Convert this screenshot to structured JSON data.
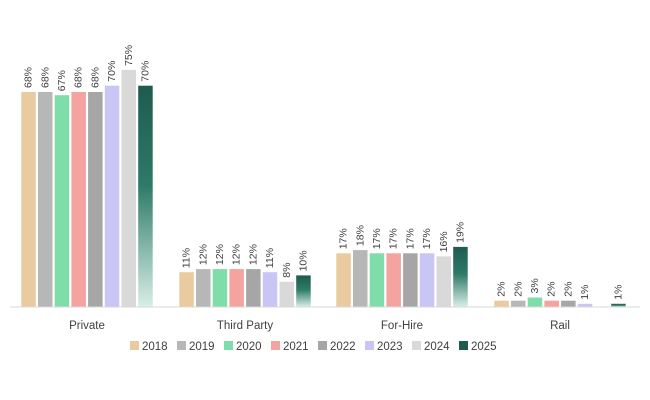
{
  "chart_data": {
    "type": "bar",
    "title": "",
    "xlabel": "",
    "ylabel": "",
    "ylim": [
      0,
      80
    ],
    "grid": false,
    "legend_position": "bottom",
    "categories": [
      "Private",
      "Third Party",
      "For-Hire",
      "Rail"
    ],
    "series": [
      {
        "name": "2018",
        "color": "#EACBA0",
        "values": [
          68,
          11,
          17,
          2
        ],
        "labels": [
          "68%",
          "11%",
          "17%",
          "2%"
        ]
      },
      {
        "name": "2019",
        "color": "#B7B7B7",
        "values": [
          68,
          12,
          18,
          2
        ],
        "labels": [
          "68%",
          "12%",
          "18%",
          "2%"
        ]
      },
      {
        "name": "2020",
        "color": "#7EDDA8",
        "values": [
          67,
          12,
          17,
          3
        ],
        "labels": [
          "67%",
          "12%",
          "17%",
          "3%"
        ]
      },
      {
        "name": "2021",
        "color": "#F4A3A0",
        "values": [
          68,
          12,
          17,
          2
        ],
        "labels": [
          "68%",
          "12%",
          "17%",
          "2%"
        ]
      },
      {
        "name": "2022",
        "color": "#A6A6A6",
        "values": [
          68,
          12,
          17,
          2
        ],
        "labels": [
          "68%",
          "12%",
          "17%",
          "2%"
        ]
      },
      {
        "name": "2023",
        "color": "#C9C5F4",
        "values": [
          70,
          11,
          17,
          1
        ],
        "labels": [
          "70%",
          "11%",
          "17%",
          "1%"
        ]
      },
      {
        "name": "2024",
        "color": "#D9D9D9",
        "values": [
          75,
          8,
          16,
          null
        ],
        "labels": [
          "75%",
          "8%",
          "16%",
          ""
        ]
      },
      {
        "name": "2025",
        "color": "#1E5B4E",
        "gradient": true,
        "values": [
          70,
          10,
          19,
          1
        ],
        "labels": [
          "70%",
          "10%",
          "19%",
          "1%"
        ]
      }
    ]
  }
}
